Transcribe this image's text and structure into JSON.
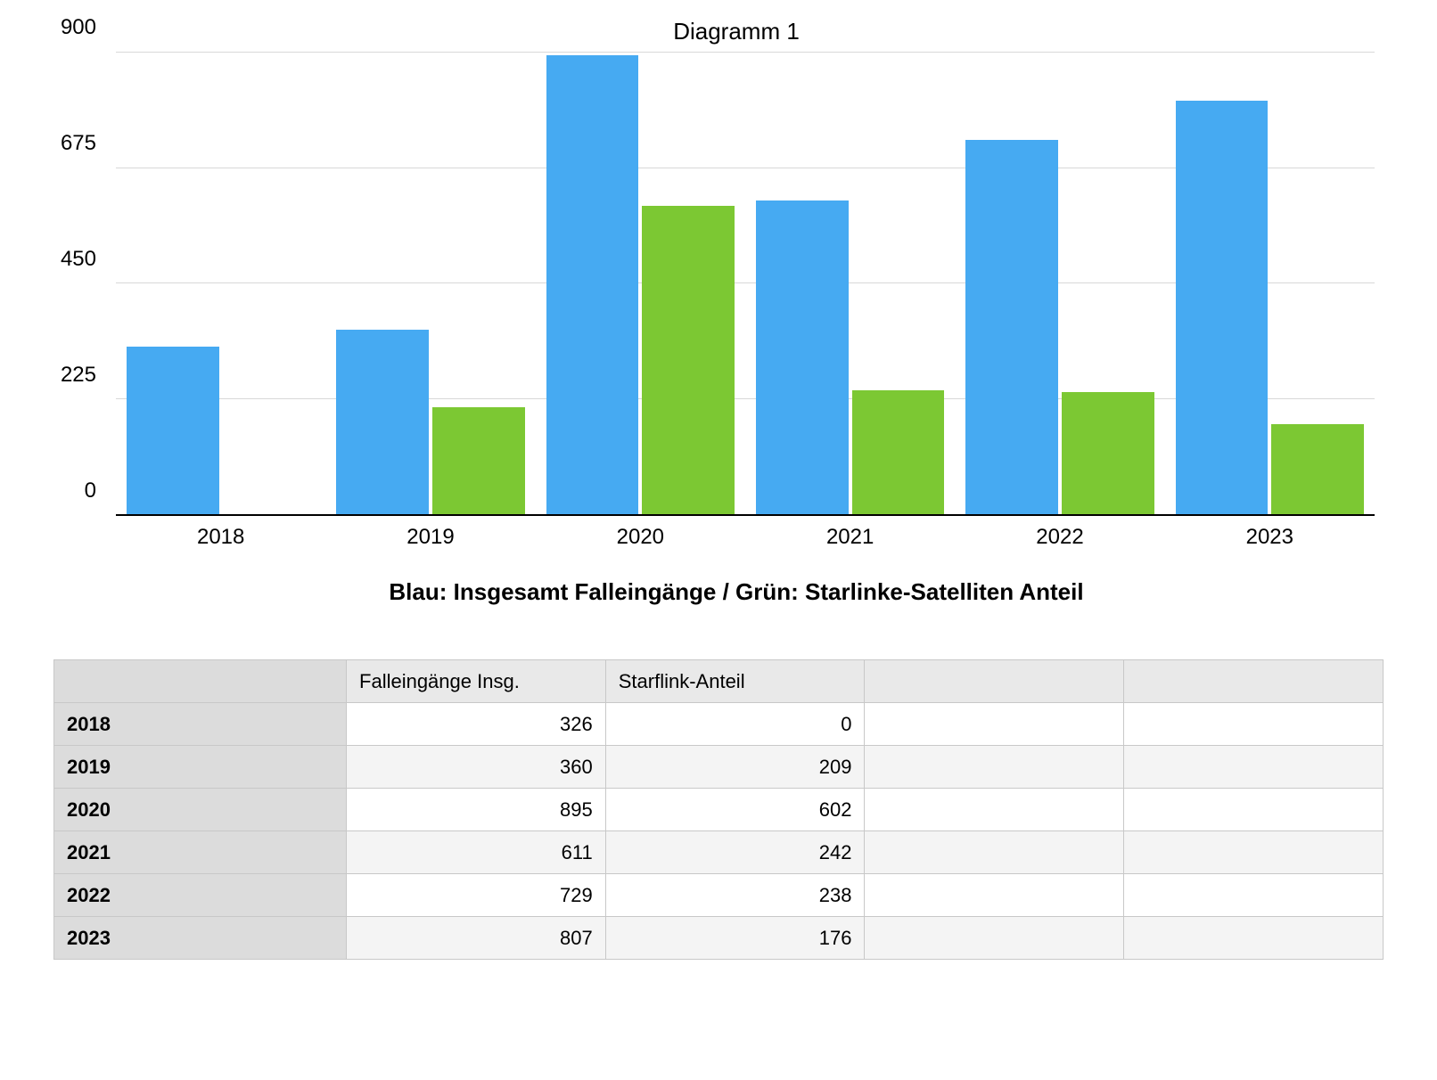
{
  "chart": {
    "type": "bar",
    "title": "Diagramm 1",
    "title_fontsize": 26,
    "subtitle": "Blau: Insgesamt Falleingänge / Grün: Starlinke-Satelliten Anteil",
    "subtitle_fontsize": 26,
    "subtitle_fontweight": 700,
    "categories": [
      "2018",
      "2019",
      "2020",
      "2021",
      "2022",
      "2023"
    ],
    "series": [
      {
        "name": "Falleingänge Insg.",
        "color": "#46aaf2",
        "values": [
          326,
          360,
          895,
          611,
          729,
          807
        ]
      },
      {
        "name": "Starflink-Anteil",
        "color": "#7cc833",
        "values": [
          0,
          209,
          602,
          242,
          238,
          176
        ]
      }
    ],
    "ylim": [
      0,
      900
    ],
    "yticks": [
      0,
      225,
      450,
      675,
      900
    ],
    "background_color": "#ffffff",
    "grid_color": "#d8d8d8",
    "axis_color": "#000000",
    "axis_fontsize": 24,
    "bar_group_gap_ratio": 0.12
  },
  "table": {
    "columns": [
      "",
      "Falleingänge Insg.",
      "Starflink-Anteil",
      "",
      ""
    ],
    "row_headers": [
      "2018",
      "2019",
      "2020",
      "2021",
      "2022",
      "2023"
    ],
    "rows": [
      [
        "326",
        "0",
        "",
        ""
      ],
      [
        "360",
        "209",
        "",
        ""
      ],
      [
        "895",
        "602",
        "",
        ""
      ],
      [
        "611",
        "242",
        "",
        ""
      ],
      [
        "729",
        "238",
        "",
        ""
      ],
      [
        "807",
        "176",
        "",
        ""
      ]
    ],
    "header_bg": "#e9e9e9",
    "rowheader_bg": "#dcdcdc",
    "alt_row_bg": "#f4f4f4",
    "border_color": "#c8c8c8",
    "fontsize": 22
  }
}
